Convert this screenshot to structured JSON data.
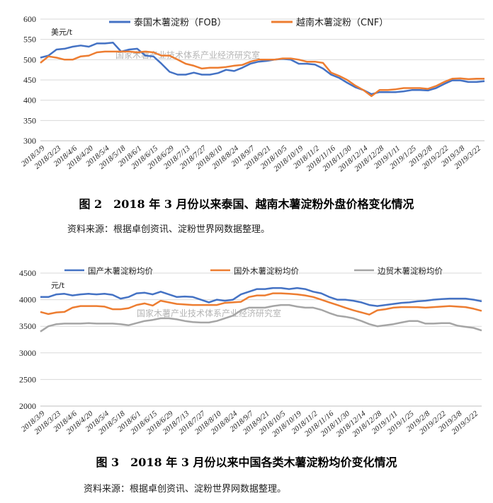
{
  "chart_data": [
    {
      "type": "line",
      "y_unit": "美元/t",
      "ylim": [
        300,
        600
      ],
      "yticks": [
        300,
        350,
        400,
        450,
        500,
        550,
        600
      ],
      "x": [
        "2018/3/9",
        "2018/3/16",
        "2018/3/23",
        "2018/3/30",
        "2018/4/6",
        "2018/4/13",
        "2018/4/20",
        "2018/4/27",
        "2018/5/4",
        "2018/5/11",
        "2018/5/18",
        "2018/5/25",
        "2018/6/1",
        "2018/6/8",
        "2018/6/15",
        "2018/6/22",
        "2018/6/29",
        "2018/7/6",
        "2018/7/13",
        "2018/7/20",
        "2018/7/27",
        "2018/8/3",
        "2018/8/10",
        "2018/8/17",
        "2018/8/24",
        "2018/8/31",
        "2018/9/7",
        "2018/9/14",
        "2018/9/21",
        "2018/9/28",
        "2018/10/5",
        "2018/10/12",
        "2018/10/19",
        "2018/10/26",
        "2018/11/2",
        "2018/11/9",
        "2018/11/16",
        "2018/11/23",
        "2018/11/30",
        "2018/12/7",
        "2018/12/14",
        "2018/12/21",
        "2018/12/28",
        "2019/1/4",
        "2019/1/11",
        "2019/1/18",
        "2019/1/25",
        "2019/2/1",
        "2019/2/8",
        "2019/2/15",
        "2019/2/22",
        "2019/3/1",
        "2019/3/8",
        "2019/3/15",
        "2019/3/22",
        "2019/3/29"
      ],
      "x_tick_labels": [
        "2018/3/9",
        "2018/3/23",
        "2018/4/6",
        "2018/4/20",
        "2018/5/4",
        "2018/5/18",
        "2018/6/1",
        "2018/6/15",
        "2018/6/29",
        "2018/7/13",
        "2018/7/27",
        "2018/8/10",
        "2018/8/24",
        "2018/9/7",
        "2018/9/21",
        "2018/10/5",
        "2018/10/19",
        "2018/11/2",
        "2018/11/16",
        "2018/11/30",
        "2018/12/14",
        "2018/12/28",
        "2019/1/11",
        "2019/1/25",
        "2019/2/8",
        "2019/2/22",
        "2019/3/8",
        "2019/3/22"
      ],
      "series": [
        {
          "name": "泰国木薯淀粉（FOB）",
          "color": "#4472c4",
          "values": [
            505,
            510,
            525,
            527,
            532,
            535,
            532,
            540,
            540,
            542,
            520,
            525,
            527,
            510,
            508,
            490,
            470,
            463,
            463,
            468,
            463,
            463,
            467,
            475,
            472,
            480,
            490,
            495,
            497,
            500,
            502,
            500,
            490,
            490,
            488,
            478,
            463,
            455,
            443,
            432,
            425,
            415,
            420,
            420,
            420,
            422,
            425,
            425,
            424,
            430,
            440,
            449,
            449,
            445,
            445,
            447
          ]
        },
        {
          "name": "越南木薯淀粉（CNF）",
          "color": "#ed7d31",
          "values": [
            492,
            508,
            505,
            500,
            500,
            508,
            510,
            518,
            520,
            520,
            520,
            520,
            518,
            520,
            518,
            510,
            510,
            500,
            490,
            485,
            478,
            480,
            480,
            482,
            485,
            487,
            495,
            500,
            500,
            500,
            503,
            503,
            500,
            495,
            495,
            492,
            468,
            460,
            450,
            436,
            425,
            410,
            425,
            425,
            427,
            430,
            430,
            430,
            428,
            435,
            445,
            453,
            454,
            452,
            453,
            453
          ]
        }
      ],
      "watermark": "国家木薯产业技术体系产业经济研究室",
      "caption": "图 2　2018 年 3 月份以来泰国、越南木薯淀粉外盘价格变化情况",
      "source": "资料来源：根据卓创资讯、淀粉世界网数据整理。"
    },
    {
      "type": "line",
      "y_unit": "元/t",
      "ylim": [
        2000,
        4500
      ],
      "yticks": [
        2000,
        2500,
        3000,
        3500,
        4000,
        4500
      ],
      "x": [
        "2018/3/9",
        "2018/3/16",
        "2018/3/23",
        "2018/3/30",
        "2018/4/6",
        "2018/4/13",
        "2018/4/20",
        "2018/4/27",
        "2018/5/4",
        "2018/5/11",
        "2018/5/18",
        "2018/5/25",
        "2018/6/1",
        "2018/6/8",
        "2018/6/15",
        "2018/6/22",
        "2018/6/29",
        "2018/7/6",
        "2018/7/13",
        "2018/7/20",
        "2018/7/27",
        "2018/8/3",
        "2018/8/10",
        "2018/8/17",
        "2018/8/24",
        "2018/8/31",
        "2018/9/7",
        "2018/9/14",
        "2018/9/21",
        "2018/9/28",
        "2018/10/5",
        "2018/10/12",
        "2018/10/19",
        "2018/10/26",
        "2018/11/2",
        "2018/11/9",
        "2018/11/16",
        "2018/11/23",
        "2018/11/30",
        "2018/12/7",
        "2018/12/14",
        "2018/12/21",
        "2018/12/28",
        "2019/1/4",
        "2019/1/11",
        "2019/1/18",
        "2019/1/25",
        "2019/2/1",
        "2019/2/8",
        "2019/2/15",
        "2019/2/22",
        "2019/3/1",
        "2019/3/8",
        "2019/3/15",
        "2019/3/22",
        "2019/3/29"
      ],
      "x_tick_labels": [
        "2018/3/9",
        "2018/3/23",
        "2018/4/6",
        "2018/4/20",
        "2018/5/4",
        "2018/5/18",
        "2018/6/1",
        "2018/6/15",
        "2018/6/29",
        "2018/7/13",
        "2018/7/27",
        "2018/8/10",
        "2018/8/24",
        "2018/9/7",
        "2018/9/21",
        "2018/10/5",
        "2018/10/19",
        "2018/11/2",
        "2018/11/16",
        "2018/11/30",
        "2018/12/14",
        "2018/12/28",
        "2019/1/11",
        "2019/1/25",
        "2019/2/8",
        "2019/2/22",
        "2019/3/8",
        "2019/3/22"
      ],
      "series": [
        {
          "name": "国产木薯淀粉均价",
          "color": "#4472c4",
          "values": [
            4050,
            4050,
            4100,
            4110,
            4080,
            4100,
            4110,
            4100,
            4110,
            4090,
            4020,
            4050,
            4120,
            4130,
            4100,
            4150,
            4100,
            4050,
            4060,
            4050,
            4000,
            3950,
            4000,
            3980,
            4000,
            4100,
            4150,
            4200,
            4200,
            4220,
            4220,
            4200,
            4220,
            4200,
            4150,
            4120,
            4050,
            4000,
            4000,
            3980,
            3950,
            3900,
            3880,
            3900,
            3920,
            3940,
            3950,
            3970,
            3980,
            4000,
            4010,
            4020,
            4020,
            4020,
            4000,
            3970
          ]
        },
        {
          "name": "国外木薯淀粉均价",
          "color": "#ed7d31",
          "values": [
            3770,
            3730,
            3760,
            3770,
            3850,
            3880,
            3880,
            3880,
            3870,
            3820,
            3820,
            3840,
            3900,
            3930,
            3890,
            3980,
            3950,
            3920,
            3910,
            3900,
            3900,
            3900,
            3900,
            3940,
            3950,
            3960,
            4050,
            4080,
            4080,
            4120,
            4120,
            4110,
            4100,
            4080,
            4050,
            4000,
            3950,
            3900,
            3850,
            3800,
            3760,
            3720,
            3800,
            3820,
            3850,
            3860,
            3860,
            3860,
            3850,
            3860,
            3870,
            3880,
            3870,
            3860,
            3830,
            3790
          ]
        },
        {
          "name": "边贸木薯淀粉均价",
          "color": "#a5a5a5",
          "values": [
            3400,
            3500,
            3540,
            3550,
            3550,
            3550,
            3560,
            3550,
            3550,
            3550,
            3540,
            3520,
            3560,
            3600,
            3620,
            3650,
            3650,
            3630,
            3600,
            3580,
            3570,
            3570,
            3600,
            3650,
            3700,
            3800,
            3850,
            3850,
            3850,
            3880,
            3900,
            3900,
            3870,
            3850,
            3850,
            3810,
            3750,
            3700,
            3680,
            3650,
            3600,
            3540,
            3500,
            3520,
            3540,
            3570,
            3600,
            3600,
            3550,
            3550,
            3560,
            3560,
            3510,
            3490,
            3470,
            3420
          ]
        }
      ],
      "watermark": "国家木薯产业技术体系产业经济研究室",
      "caption": "图 3　2018 年 3 月份以来中国各类木薯淀粉均价变化情况",
      "source": "资料来源：根据卓创资讯、淀粉世界网数据整理。"
    }
  ]
}
